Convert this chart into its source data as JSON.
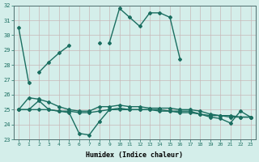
{
  "xlabel": "Humidex (Indice chaleur)",
  "xlim": [
    -0.5,
    23.5
  ],
  "ylim": [
    23,
    32
  ],
  "yticks": [
    23,
    24,
    25,
    26,
    27,
    28,
    29,
    30,
    31,
    32
  ],
  "xticks": [
    0,
    1,
    2,
    3,
    4,
    5,
    6,
    7,
    8,
    9,
    10,
    11,
    12,
    13,
    14,
    15,
    16,
    17,
    18,
    19,
    20,
    21,
    22,
    23
  ],
  "bg_color": "#d4eeea",
  "grid_color": "#c8b8b8",
  "line_color": "#1a6e60",
  "line_width": 1.0,
  "marker": "D",
  "marker_size": 2.0,
  "lines": [
    [
      30.5,
      26.8,
      null,
      null,
      null,
      null,
      null,
      null,
      null,
      29.5,
      31.8,
      31.2,
      30.6,
      31.5,
      31.5,
      31.2,
      28.4,
      null,
      null,
      null,
      null,
      null,
      null,
      null
    ],
    [
      null,
      null,
      27.5,
      28.2,
      28.8,
      29.3,
      null,
      null,
      29.5,
      null,
      null,
      null,
      null,
      null,
      null,
      null,
      null,
      null,
      null,
      null,
      null,
      null,
      null,
      null
    ],
    [
      25.0,
      25.8,
      25.7,
      25.5,
      25.2,
      25.0,
      24.9,
      24.9,
      25.2,
      25.2,
      25.3,
      25.2,
      25.2,
      25.1,
      25.1,
      25.1,
      25.0,
      25.0,
      24.9,
      24.7,
      24.6,
      24.6,
      24.5,
      24.5
    ],
    [
      25.0,
      25.0,
      25.6,
      25.0,
      24.9,
      24.8,
      23.4,
      23.3,
      24.2,
      25.0,
      25.1,
      25.0,
      25.0,
      25.0,
      25.0,
      24.9,
      24.9,
      24.9,
      24.7,
      24.5,
      24.4,
      24.1,
      24.9,
      24.5
    ],
    [
      25.0,
      25.0,
      25.0,
      25.0,
      24.9,
      24.9,
      24.8,
      24.8,
      24.9,
      25.0,
      25.0,
      25.0,
      25.0,
      25.0,
      24.9,
      24.9,
      24.8,
      24.8,
      24.7,
      24.6,
      24.6,
      24.5,
      24.5,
      24.5
    ]
  ]
}
